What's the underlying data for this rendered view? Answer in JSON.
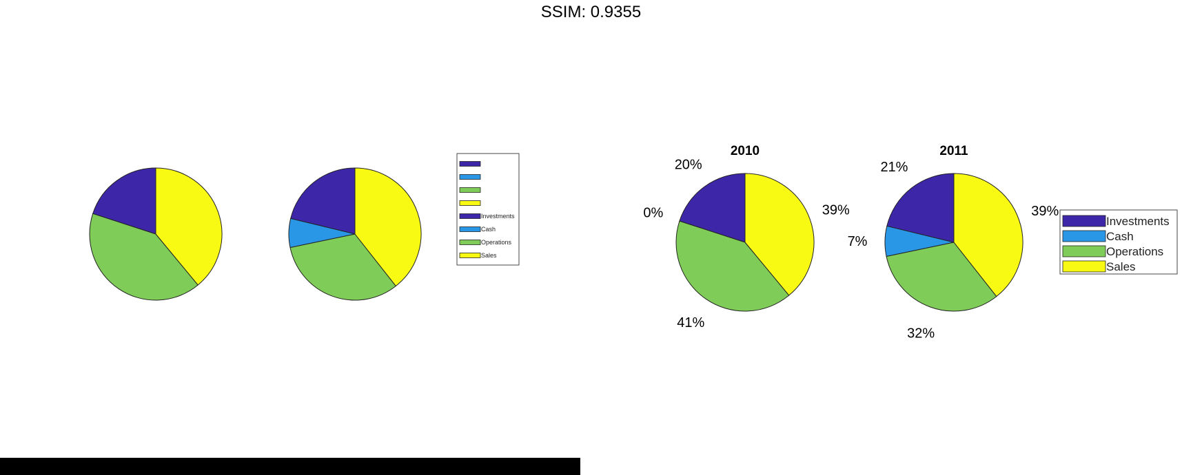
{
  "header": {
    "title": "SSIM: 0.9355"
  },
  "colors": {
    "Investments": "#3D26A8",
    "Cash": "#2A96E6",
    "Operations": "#80CC58",
    "Sales": "#F8FA14",
    "slice_edge": "#222222"
  },
  "chart_data": [
    {
      "type": "pie",
      "panel": "left",
      "title": "",
      "slices": [
        {
          "label": "Investments",
          "value": 20
        },
        {
          "label": "Cash",
          "value": 0
        },
        {
          "label": "Operations",
          "value": 41
        },
        {
          "label": "Sales",
          "value": 39
        }
      ],
      "show_percent_labels": false
    },
    {
      "type": "pie",
      "panel": "left",
      "title": "",
      "slices": [
        {
          "label": "Investments",
          "value": 21
        },
        {
          "label": "Cash",
          "value": 7
        },
        {
          "label": "Operations",
          "value": 32
        },
        {
          "label": "Sales",
          "value": 39
        }
      ],
      "show_percent_labels": false,
      "legend": {
        "placement": "right",
        "entries": [
          "",
          "",
          "",
          "",
          "Investments",
          "Cash",
          "Operations",
          "Sales"
        ]
      }
    },
    {
      "type": "pie",
      "panel": "right",
      "title": "2010",
      "slices": [
        {
          "label": "Investments",
          "value": 20,
          "text": "20%"
        },
        {
          "label": "Cash",
          "value": 0,
          "text": "0%"
        },
        {
          "label": "Operations",
          "value": 41,
          "text": "41%"
        },
        {
          "label": "Sales",
          "value": 39,
          "text": "39%"
        }
      ],
      "show_percent_labels": true
    },
    {
      "type": "pie",
      "panel": "right",
      "title": "2011",
      "slices": [
        {
          "label": "Investments",
          "value": 21,
          "text": "21%"
        },
        {
          "label": "Cash",
          "value": 7,
          "text": "7%"
        },
        {
          "label": "Operations",
          "value": 32,
          "text": "32%"
        },
        {
          "label": "Sales",
          "value": 39,
          "text": "39%"
        }
      ],
      "show_percent_labels": true,
      "legend": {
        "placement": "right",
        "entries": [
          "Investments",
          "Cash",
          "Operations",
          "Sales"
        ]
      }
    }
  ]
}
